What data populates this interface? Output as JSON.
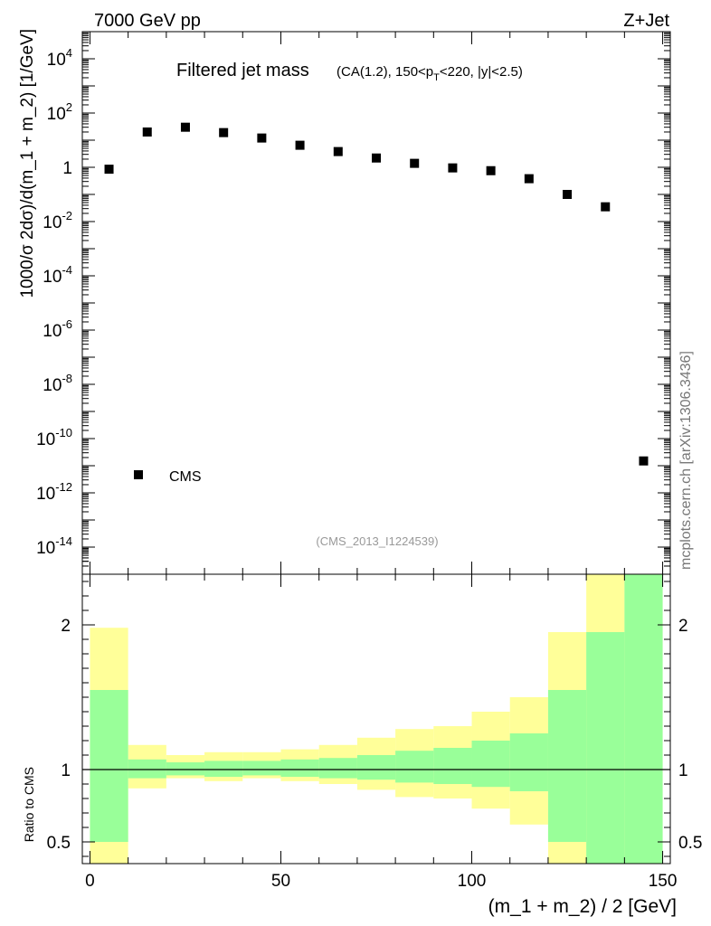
{
  "header": {
    "left": "7000 GeV pp",
    "right": "Z+Jet"
  },
  "side_label": "mcplots.cern.ch [arXiv:1306.3436]",
  "analysis_tag": "(CMS_2013_I1224539)",
  "chart_data": [
    {
      "type": "scatter",
      "title": "Filtered jet mass",
      "subtitle_parts": [
        "(CA(1.2), 150<p",
        "T",
        "<220, |y|<2.5)"
      ],
      "ylabel": "1000/σ 2dσ)/d(m_1 + m_2) [1/GeV]",
      "yscale": "log",
      "ylim": [
        1e-15,
        100000.0
      ],
      "xlim": [
        -2,
        152
      ],
      "yticks": [
        {
          "base": "10",
          "exp": "4",
          "value": 10000.0
        },
        {
          "base": "10",
          "exp": "2",
          "value": 100.0
        },
        {
          "base": "1",
          "exp": "",
          "value": 1
        },
        {
          "base": "10",
          "exp": "-2",
          "value": 0.01
        },
        {
          "base": "10",
          "exp": "-4",
          "value": 0.0001
        },
        {
          "base": "10",
          "exp": "-6",
          "value": 1e-06
        },
        {
          "base": "10",
          "exp": "-8",
          "value": 1e-08
        },
        {
          "base": "10",
          "exp": "-10",
          "value": 1e-10
        },
        {
          "base": "10",
          "exp": "-12",
          "value": 1e-12
        },
        {
          "base": "10",
          "exp": "-14",
          "value": 1e-14
        }
      ],
      "legend": {
        "label": "CMS",
        "position": "lower-left"
      },
      "series": [
        {
          "name": "CMS",
          "x": [
            5,
            15,
            25,
            35,
            45,
            55,
            65,
            75,
            85,
            95,
            105,
            115,
            125,
            135,
            145
          ],
          "y": [
            0.85,
            20,
            30,
            19,
            12,
            6.5,
            3.8,
            2.2,
            1.4,
            0.95,
            0.75,
            0.38,
            0.1,
            0.035,
            1.5e-11
          ]
        }
      ]
    },
    {
      "type": "area",
      "ylabel": "Ratio to CMS",
      "xlabel": "(m_1 + m_2) / 2 [GeV]",
      "ylim": [
        0.35,
        2.35
      ],
      "xlim": [
        -2,
        152
      ],
      "xticks": [
        "0",
        "50",
        "100",
        "150"
      ],
      "xtick_values": [
        0,
        50,
        100,
        150
      ],
      "yticks": [
        "0.5",
        "1",
        "2"
      ],
      "ytick_values": [
        0.5,
        1,
        2
      ],
      "bin_edges": [
        0,
        10,
        20,
        30,
        40,
        50,
        60,
        70,
        80,
        90,
        100,
        110,
        120,
        130,
        140,
        150
      ],
      "stat_band": {
        "color": "#99ff99",
        "lo": [
          0.5,
          0.94,
          0.96,
          0.95,
          0.96,
          0.95,
          0.94,
          0.93,
          0.91,
          0.9,
          0.88,
          0.85,
          0.5,
          0.35,
          0.35
        ],
        "hi": [
          1.55,
          1.07,
          1.05,
          1.06,
          1.06,
          1.07,
          1.08,
          1.1,
          1.13,
          1.15,
          1.2,
          1.25,
          1.55,
          1.95,
          2.35
        ]
      },
      "total_band": {
        "color": "#ffff99",
        "lo": [
          0.35,
          0.87,
          0.94,
          0.92,
          0.94,
          0.92,
          0.9,
          0.86,
          0.81,
          0.8,
          0.73,
          0.62,
          0.35,
          0.35,
          0.35
        ],
        "hi": [
          1.98,
          1.17,
          1.1,
          1.12,
          1.12,
          1.14,
          1.17,
          1.22,
          1.28,
          1.3,
          1.4,
          1.5,
          1.95,
          2.35,
          2.35
        ]
      },
      "reference_line": 1
    }
  ]
}
